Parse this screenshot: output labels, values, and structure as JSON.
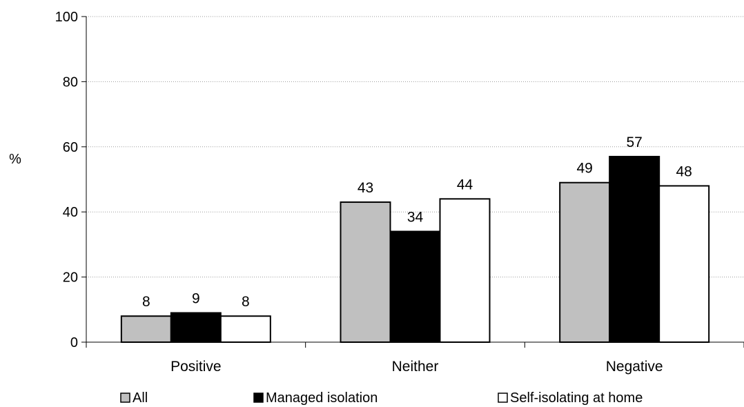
{
  "chart_data": {
    "type": "bar",
    "categories": [
      "Positive",
      "Neither",
      "Negative"
    ],
    "series": [
      {
        "name": "All",
        "values": [
          8,
          43,
          49
        ],
        "color": "#c0c0c0"
      },
      {
        "name": "Managed isolation",
        "values": [
          9,
          34,
          57
        ],
        "color": "#000000"
      },
      {
        "name": "Self-isolating at home",
        "values": [
          8,
          44,
          48
        ],
        "color": "#ffffff"
      }
    ],
    "ylabel": "%",
    "xlabel": "",
    "ylim": [
      0,
      100
    ],
    "yticks": [
      0,
      20,
      40,
      60,
      80,
      100
    ],
    "grid": "horizontal dotted",
    "legend_position": "bottom",
    "data_labels": true
  }
}
